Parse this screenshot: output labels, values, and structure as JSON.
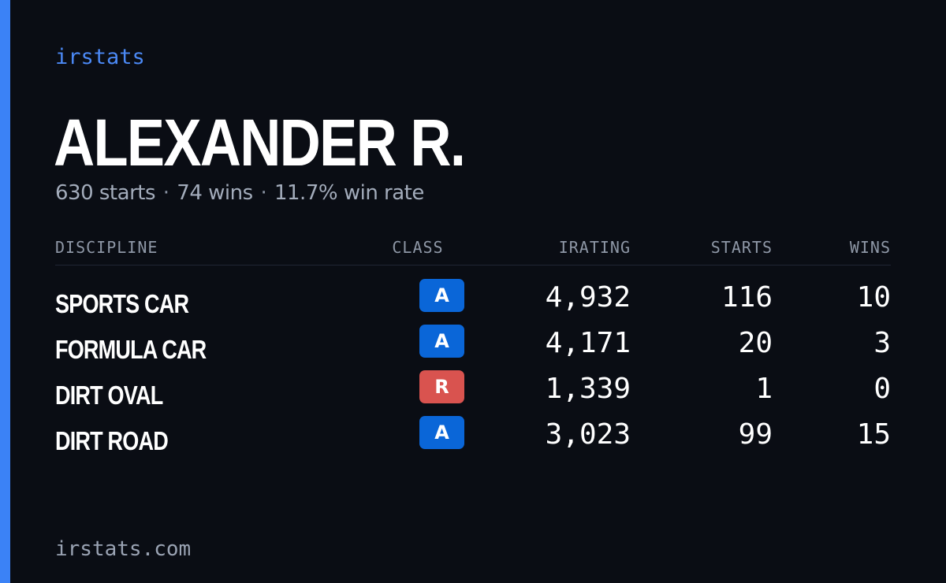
{
  "brand": "irstats",
  "profile": {
    "name": "ALEXANDER R.",
    "starts_text": "630 starts",
    "wins_text": "74 wins",
    "win_rate_text": "11.7% win rate",
    "separator": "·"
  },
  "table": {
    "headers": {
      "discipline": "DISCIPLINE",
      "class": "CLASS",
      "irating": "IRATING",
      "starts": "STARTS",
      "wins": "WINS"
    },
    "rows": [
      {
        "discipline": "SPORTS CAR",
        "class": "A",
        "irating": "4,932",
        "starts": "116",
        "wins": "10"
      },
      {
        "discipline": "FORMULA CAR",
        "class": "A",
        "irating": "4,171",
        "starts": "20",
        "wins": "3"
      },
      {
        "discipline": "DIRT OVAL",
        "class": "R",
        "irating": "1,339",
        "starts": "1",
        "wins": "0"
      },
      {
        "discipline": "DIRT ROAD",
        "class": "A",
        "irating": "3,023",
        "starts": "99",
        "wins": "15"
      }
    ]
  },
  "footer": {
    "url": "irstats.com"
  },
  "colors": {
    "background": "#0a0d14",
    "accent": "#3b82f6",
    "class_a": "#0a66d8",
    "class_r": "#d9534f"
  }
}
